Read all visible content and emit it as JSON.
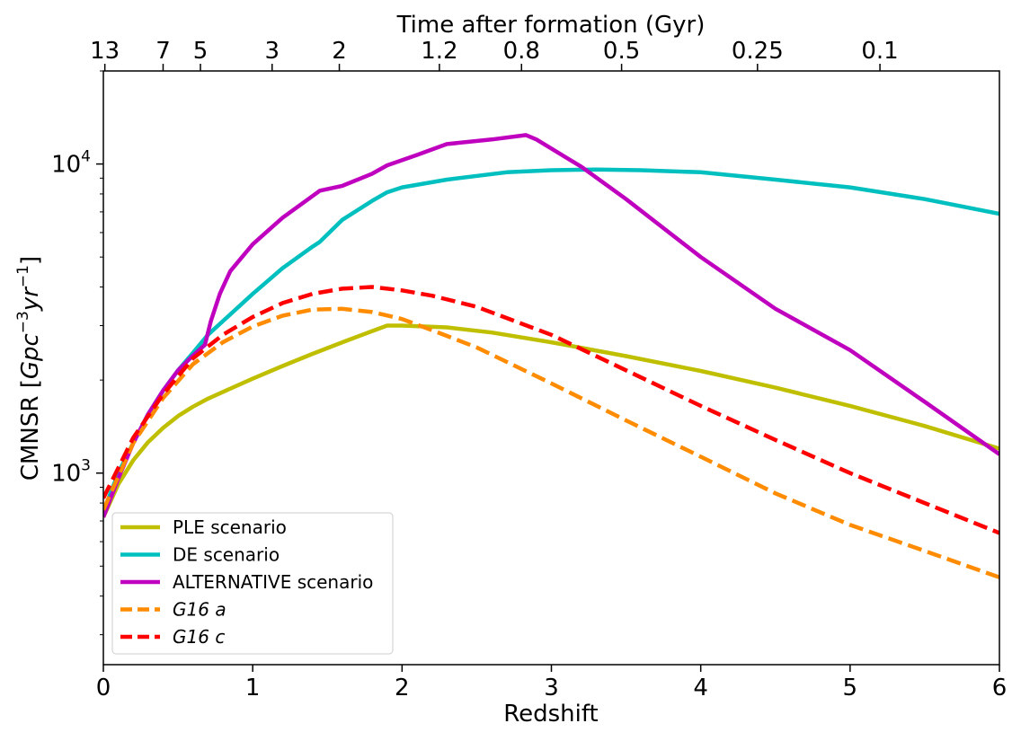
{
  "chart_data": {
    "type": "line",
    "xlabel": "Redshift",
    "ylabel_main": "CMNSR [",
    "ylabel_math": "Gpc",
    "ylabel_exp1": "−3",
    "ylabel_math2": "yr",
    "ylabel_exp2": "−1",
    "ylabel_close": "]",
    "top_xlabel": "Time after formation (Gyr)",
    "xlim": [
      0,
      6
    ],
    "ylim": [
      240,
      20000
    ],
    "yscale": "log",
    "x_ticks": [
      {
        "value": 0,
        "label": "0"
      },
      {
        "value": 1,
        "label": "1"
      },
      {
        "value": 2,
        "label": "2"
      },
      {
        "value": 3,
        "label": "3"
      },
      {
        "value": 4,
        "label": "4"
      },
      {
        "value": 5,
        "label": "5"
      },
      {
        "value": 6,
        "label": "6"
      }
    ],
    "y_ticks": [
      {
        "value": 1000,
        "base": "10",
        "exp": "3"
      },
      {
        "value": 10000,
        "base": "10",
        "exp": "4"
      }
    ],
    "top_ticks": [
      {
        "z": 0.01,
        "label": "13"
      },
      {
        "z": 0.4,
        "label": "7"
      },
      {
        "z": 0.65,
        "label": "5"
      },
      {
        "z": 1.13,
        "label": "3"
      },
      {
        "z": 1.58,
        "label": "2"
      },
      {
        "z": 2.25,
        "label": "1.2"
      },
      {
        "z": 2.8,
        "label": "0.8"
      },
      {
        "z": 3.47,
        "label": "0.5"
      },
      {
        "z": 4.38,
        "label": "0.25"
      },
      {
        "z": 5.2,
        "label": "0.1"
      }
    ],
    "legend_position": "lower-left",
    "series": [
      {
        "name": "PLE scenario",
        "color": "#bfbf00",
        "dash": "solid",
        "x": [
          0,
          0.1,
          0.2,
          0.3,
          0.4,
          0.5,
          0.6,
          0.7,
          0.8,
          1.0,
          1.2,
          1.4,
          1.6,
          1.8,
          1.9,
          2.0,
          2.3,
          2.6,
          3.0,
          3.5,
          4.0,
          4.5,
          5.0,
          5.5,
          6.0
        ],
        "y": [
          720,
          920,
          1100,
          1260,
          1400,
          1530,
          1640,
          1740,
          1830,
          2020,
          2220,
          2430,
          2650,
          2880,
          3000,
          3000,
          2960,
          2850,
          2650,
          2390,
          2140,
          1890,
          1650,
          1420,
          1200
        ]
      },
      {
        "name": "DE scenario",
        "color": "#00bfbf",
        "dash": "solid",
        "x": [
          0,
          0.1,
          0.2,
          0.3,
          0.4,
          0.5,
          0.6,
          0.7,
          0.8,
          1.0,
          1.2,
          1.4,
          1.45,
          1.6,
          1.8,
          1.9,
          2.0,
          2.3,
          2.7,
          3.0,
          3.3,
          3.6,
          4.0,
          4.5,
          5.0,
          5.5,
          6.0
        ],
        "y": [
          750,
          1000,
          1250,
          1550,
          1850,
          2150,
          2450,
          2800,
          3100,
          3800,
          4600,
          5400,
          5600,
          6600,
          7600,
          8100,
          8400,
          8900,
          9400,
          9550,
          9600,
          9550,
          9400,
          8900,
          8400,
          7700,
          6900
        ]
      },
      {
        "name": "ALTERNATIVE scenario",
        "color": "#bf00bf",
        "dash": "solid",
        "x": [
          0,
          0.1,
          0.2,
          0.3,
          0.4,
          0.5,
          0.6,
          0.68,
          0.72,
          0.78,
          0.85,
          1.0,
          1.2,
          1.45,
          1.6,
          1.8,
          1.9,
          2.1,
          2.3,
          2.6,
          2.83,
          2.9,
          3.2,
          3.5,
          4.0,
          4.5,
          5.0,
          5.5,
          6.0
        ],
        "y": [
          720,
          960,
          1250,
          1550,
          1850,
          2150,
          2400,
          2600,
          3100,
          3800,
          4500,
          5500,
          6700,
          8200,
          8500,
          9300,
          9900,
          10700,
          11600,
          12000,
          12400,
          12000,
          9800,
          7700,
          5000,
          3400,
          2500,
          1700,
          1150
        ]
      },
      {
        "name": "G16 a",
        "color": "#ff8c00",
        "dash": "dashed",
        "x": [
          0,
          0.2,
          0.4,
          0.6,
          0.8,
          1.0,
          1.2,
          1.4,
          1.6,
          1.8,
          2.0,
          2.2,
          2.5,
          3.0,
          3.5,
          4.0,
          4.5,
          5.0,
          5.5,
          6.0
        ],
        "y": [
          760,
          1250,
          1750,
          2250,
          2650,
          2980,
          3230,
          3380,
          3400,
          3320,
          3150,
          2900,
          2550,
          1950,
          1480,
          1130,
          860,
          680,
          560,
          460
        ]
      },
      {
        "name": "G16 c",
        "color": "#ff0000",
        "dash": "dashed",
        "x": [
          0,
          0.2,
          0.4,
          0.6,
          0.8,
          1.0,
          1.2,
          1.4,
          1.6,
          1.8,
          2.0,
          2.2,
          2.5,
          3.0,
          3.5,
          4.0,
          4.5,
          5.0,
          5.5,
          6.0
        ],
        "y": [
          830,
          1300,
          1800,
          2350,
          2800,
          3200,
          3550,
          3800,
          3950,
          4000,
          3900,
          3750,
          3450,
          2800,
          2150,
          1650,
          1280,
          1000,
          800,
          640
        ]
      }
    ],
    "legend": [
      {
        "label": "PLE scenario",
        "style": "plain"
      },
      {
        "label": "DE scenario",
        "style": "plain"
      },
      {
        "label": "ALTERNATIVE scenario",
        "style": "plain"
      },
      {
        "label": "G16 ",
        "italic_suffix": "a",
        "style": "math"
      },
      {
        "label": "G16 ",
        "italic_suffix": "c",
        "style": "math"
      }
    ]
  }
}
